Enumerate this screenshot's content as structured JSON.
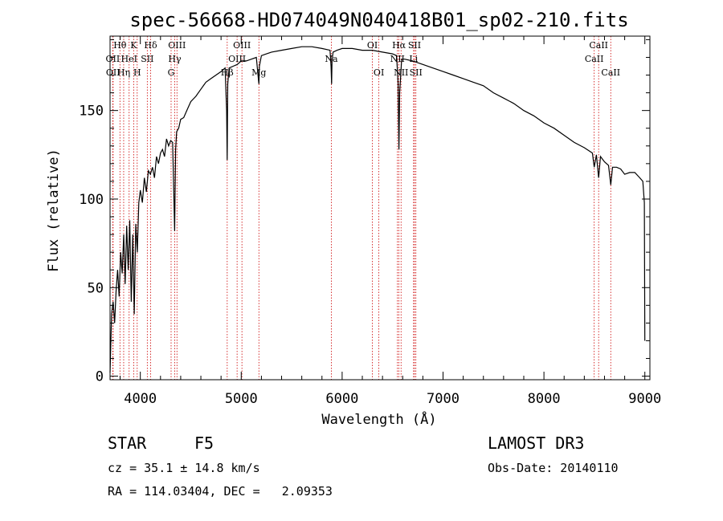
{
  "chart_data": {
    "type": "line",
    "title": "spec-56668-HD074049N040418B01_sp02-210.fits",
    "xlabel": "Wavelength (Å)",
    "ylabel": "Flux (relative)",
    "xlim": [
      3700,
      9050
    ],
    "ylim": [
      -2,
      192
    ],
    "x_ticks": [
      4000,
      5000,
      6000,
      7000,
      8000,
      9000
    ],
    "x_tick_labels": [
      "4000",
      "5000",
      "6000",
      "7000",
      "8000",
      "9000"
    ],
    "y_ticks": [
      0,
      50,
      100,
      150
    ],
    "y_tick_labels": [
      "0",
      "50",
      "100",
      "150"
    ],
    "grid": false,
    "series": [
      {
        "name": "spectrum",
        "color": "#000000",
        "x": [
          3700,
          3715,
          3730,
          3745,
          3760,
          3775,
          3790,
          3805,
          3820,
          3835,
          3850,
          3865,
          3880,
          3895,
          3910,
          3925,
          3940,
          3955,
          3970,
          3985,
          4000,
          4020,
          4040,
          4060,
          4080,
          4100,
          4120,
          4140,
          4160,
          4180,
          4200,
          4220,
          4240,
          4260,
          4280,
          4300,
          4320,
          4340,
          4350,
          4360,
          4380,
          4400,
          4430,
          4460,
          4500,
          4550,
          4600,
          4650,
          4700,
          4750,
          4800,
          4840,
          4855,
          4861,
          4866,
          4880,
          4920,
          4960,
          5000,
          5050,
          5100,
          5150,
          5170,
          5175,
          5180,
          5200,
          5250,
          5300,
          5400,
          5500,
          5600,
          5700,
          5800,
          5880,
          5890,
          5896,
          5900,
          5910,
          5950,
          6000,
          6100,
          6200,
          6300,
          6400,
          6500,
          6540,
          6555,
          6563,
          6570,
          6590,
          6620,
          6700,
          6800,
          6900,
          7000,
          7100,
          7200,
          7300,
          7400,
          7500,
          7600,
          7700,
          7800,
          7900,
          8000,
          8100,
          8200,
          8300,
          8400,
          8480,
          8498,
          8520,
          8542,
          8560,
          8600,
          8640,
          8662,
          8680,
          8720,
          8760,
          8800,
          8850,
          8900,
          8950,
          8980,
          8995,
          9000
        ],
        "y": [
          2,
          35,
          42,
          30,
          48,
          60,
          45,
          70,
          58,
          80,
          52,
          85,
          60,
          88,
          42,
          80,
          35,
          86,
          70,
          98,
          105,
          98,
          112,
          104,
          116,
          114,
          118,
          112,
          124,
          120,
          126,
          128,
          124,
          134,
          130,
          133,
          132,
          82,
          128,
          138,
          140,
          145,
          146,
          150,
          155,
          158,
          162,
          166,
          168,
          170,
          172,
          174,
          150,
          122,
          165,
          174,
          175,
          176,
          178,
          178,
          179,
          180,
          168,
          165,
          175,
          181,
          182,
          183,
          184,
          185,
          186,
          186,
          185,
          184,
          175,
          165,
          178,
          183,
          184,
          185,
          185,
          184,
          184,
          183,
          182,
          181,
          165,
          128,
          160,
          179,
          179,
          178,
          176,
          174,
          172,
          170,
          168,
          166,
          164,
          160,
          157,
          154,
          150,
          147,
          143,
          140,
          136,
          132,
          129,
          126,
          118,
          125,
          112,
          124,
          121,
          119,
          108,
          118,
          118,
          117,
          114,
          115,
          115,
          112,
          110,
          98,
          20
        ]
      }
    ],
    "line_annotations": [
      {
        "label": "Hθ",
        "x": 3798,
        "row": 0
      },
      {
        "label": "OII",
        "x": 3727,
        "row": 1
      },
      {
        "label": "OII",
        "x": 3730,
        "row": 2
      },
      {
        "label": "K",
        "x": 3934,
        "row": 0
      },
      {
        "label": "HeI",
        "x": 3889,
        "row": 1
      },
      {
        "label": "Hη",
        "x": 3835,
        "row": 2
      },
      {
        "label": "SII",
        "x": 4069,
        "row": 1
      },
      {
        "label": "H",
        "x": 3969,
        "row": 2
      },
      {
        "label": "Hδ",
        "x": 4102,
        "row": 0
      },
      {
        "label": "OIII",
        "x": 4363,
        "row": 0
      },
      {
        "label": "Hγ",
        "x": 4341,
        "row": 1
      },
      {
        "label": "G",
        "x": 4305,
        "row": 2
      },
      {
        "label": "OIII",
        "x": 5007,
        "row": 0
      },
      {
        "label": "OIII",
        "x": 4959,
        "row": 1
      },
      {
        "label": "Hβ",
        "x": 4861,
        "row": 2
      },
      {
        "label": "Mg",
        "x": 5175,
        "row": 2
      },
      {
        "label": "Na",
        "x": 5893,
        "row": 1
      },
      {
        "label": "OI",
        "x": 6300,
        "row": 0
      },
      {
        "label": "OI",
        "x": 6364,
        "row": 2
      },
      {
        "label": "Hα",
        "x": 6563,
        "row": 0
      },
      {
        "label": "NII",
        "x": 6548,
        "row": 1
      },
      {
        "label": "NII",
        "x": 6584,
        "row": 2
      },
      {
        "label": "SII",
        "x": 6717,
        "row": 0
      },
      {
        "label": "Li",
        "x": 6708,
        "row": 1
      },
      {
        "label": "SII",
        "x": 6731,
        "row": 2
      },
      {
        "label": "CaII",
        "x": 8542,
        "row": 0
      },
      {
        "label": "CaII",
        "x": 8498,
        "row": 1
      },
      {
        "label": "CaII",
        "x": 8662,
        "row": 2
      }
    ],
    "line_color": "#cc0000"
  },
  "info": {
    "object_class": "STAR",
    "subclass": "F5",
    "survey": "LAMOST DR3",
    "redshift": "cz = 35.1 ± 14.8 km/s",
    "obs_date": "Obs-Date: 20140110",
    "coords": "RA = 114.03404, DEC =   2.09353"
  }
}
